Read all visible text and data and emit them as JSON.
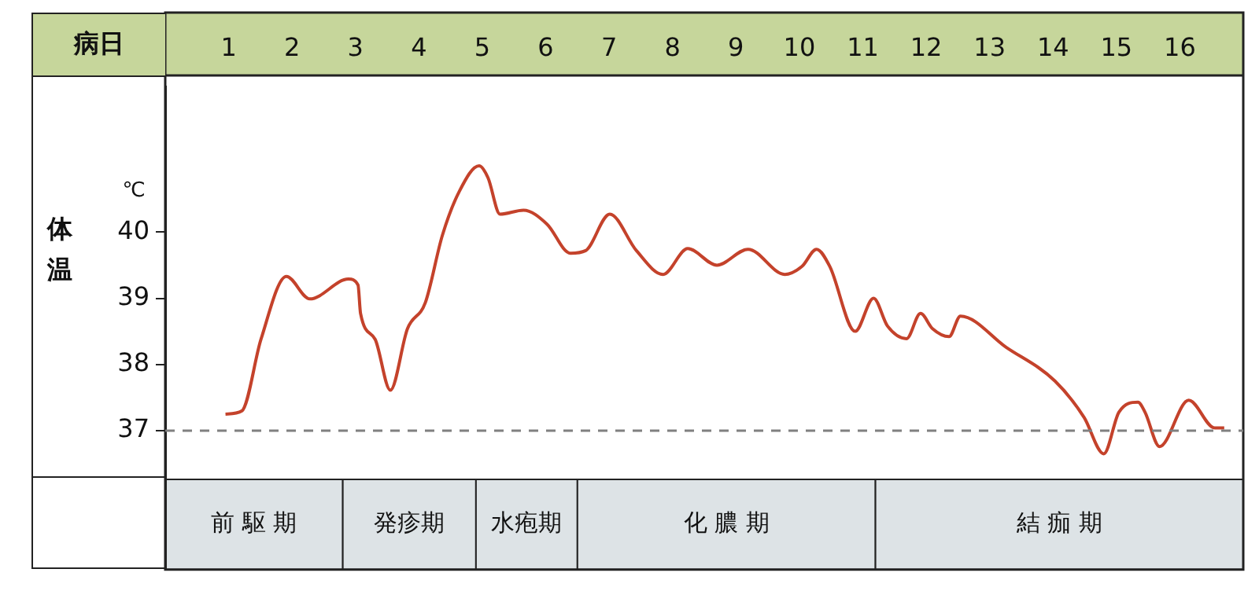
{
  "chart_data": {
    "type": "line",
    "xlabel": "病日",
    "ylabel": "体温",
    "annotations": [
      "℃"
    ],
    "x": [
      0.95,
      1.21,
      1.51,
      1.91,
      2.28,
      2.89,
      3.04,
      3.08,
      3.31,
      3.55,
      3.82,
      4.1,
      4.37,
      4.64,
      4.95,
      5.09,
      5.28,
      5.65,
      6.02,
      6.39,
      6.63,
      7.01,
      7.43,
      7.85,
      8.24,
      8.7,
      9.19,
      9.77,
      10.04,
      10.27,
      10.48,
      10.88,
      11.17,
      11.39,
      11.69,
      11.91,
      12.1,
      12.36,
      12.54,
      13.26,
      14.03,
      14.49,
      14.8,
      15.04,
      15.34,
      15.45,
      15.68,
      16.14,
      16.55,
      16.7
    ],
    "series": [
      {
        "color": "#c4422b",
        "values": [
          37.25,
          37.3,
          38.38,
          39.33,
          38.99,
          39.29,
          39.2,
          38.77,
          38.38,
          37.61,
          38.54,
          38.93,
          39.95,
          40.62,
          41.0,
          40.82,
          40.27,
          40.33,
          40.12,
          39.68,
          39.72,
          40.27,
          39.72,
          39.36,
          39.75,
          39.5,
          39.74,
          39.36,
          39.48,
          39.74,
          39.48,
          38.5,
          39.0,
          38.58,
          38.39,
          38.77,
          38.54,
          38.42,
          38.73,
          38.26,
          37.75,
          37.2,
          36.65,
          37.28,
          37.43,
          37.28,
          36.76,
          37.46,
          37.04,
          37.04
        ]
      }
    ],
    "xlim": [
      0,
      17
    ],
    "xticks": [
      1,
      2,
      3,
      4,
      5,
      6,
      7,
      8,
      9,
      10,
      11,
      12,
      13,
      14,
      15,
      16
    ],
    "ylim": [
      34.9,
      42.2
    ],
    "yticks": [
      37,
      38,
      39,
      40
    ],
    "grid": false,
    "legend": false,
    "marker": "none",
    "line_style": "solid",
    "ref_lines": [
      {
        "axis": "y",
        "value": 37,
        "color": "#808080",
        "line_style": "dashed"
      }
    ],
    "bands": [
      {
        "axis": "x",
        "from": 0,
        "to": 2.8,
        "label": "前 駆 期",
        "color": "#dde3e6"
      },
      {
        "axis": "x",
        "from": 2.8,
        "to": 4.9,
        "label": "発疹期",
        "color": "#dde3e6"
      },
      {
        "axis": "x",
        "from": 4.9,
        "to": 6.5,
        "label": "水疱期",
        "color": "#dde3e6"
      },
      {
        "axis": "x",
        "from": 6.5,
        "to": 11.2,
        "label": "化 膿 期",
        "color": "#dde3e6"
      },
      {
        "axis": "x",
        "from": 11.2,
        "to": 17,
        "label": "結 痂 期",
        "color": "#dde3e6"
      }
    ]
  }
}
